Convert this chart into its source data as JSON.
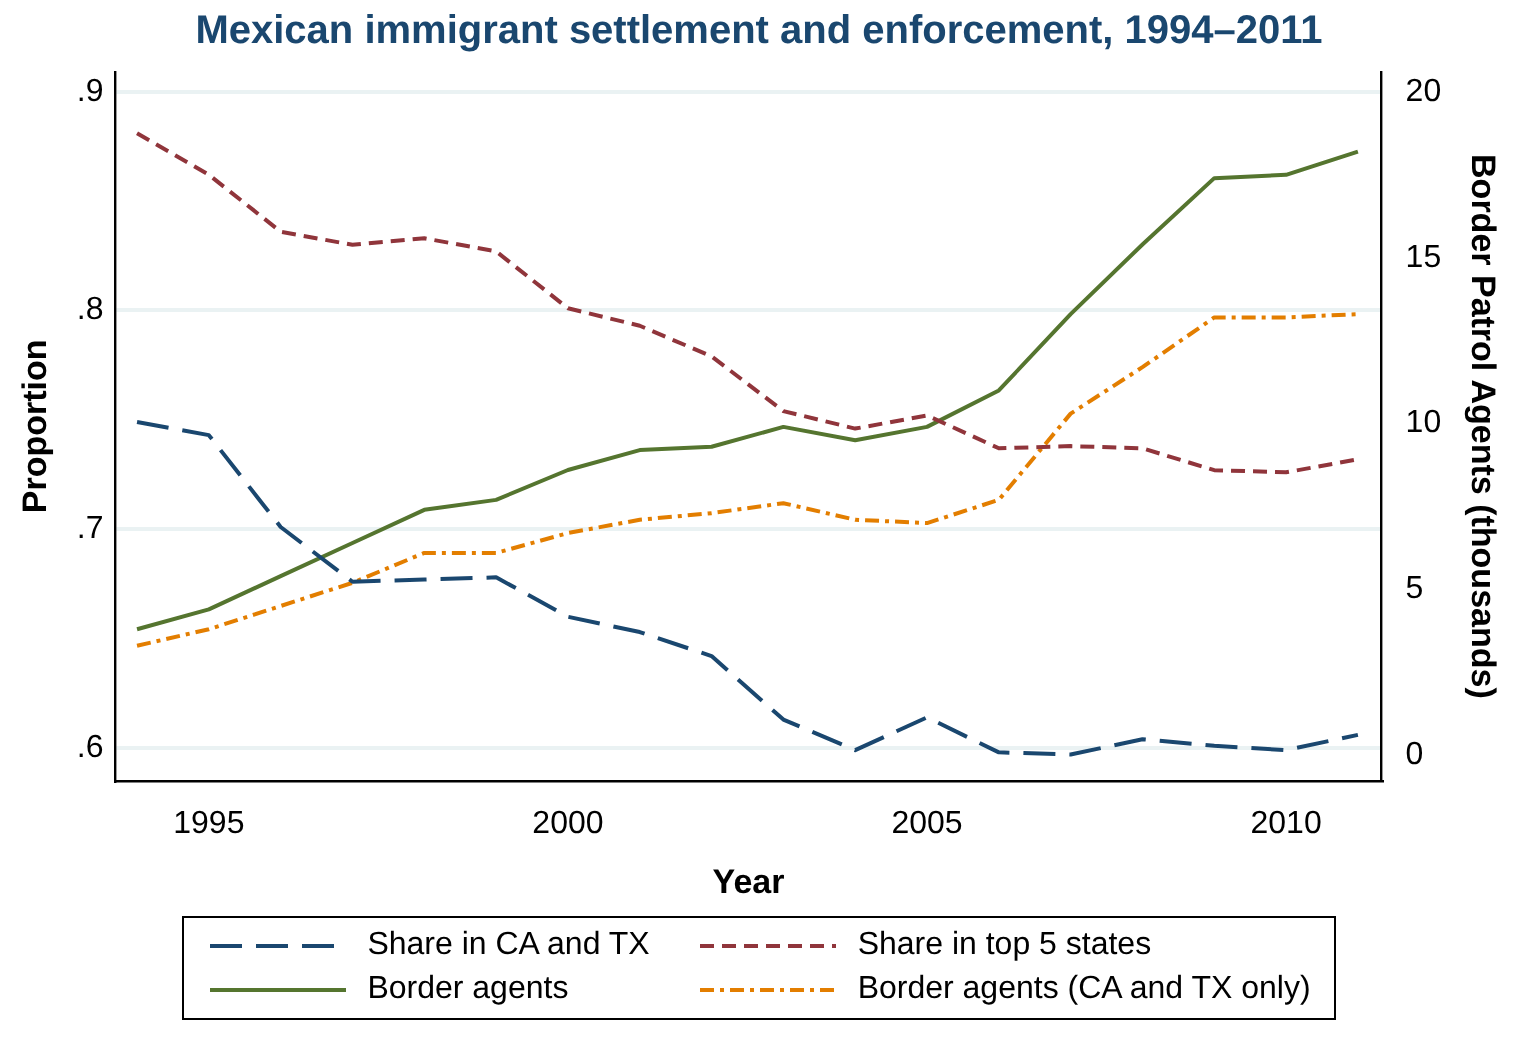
{
  "chart_data": {
    "type": "line",
    "title": "Mexican immigrant settlement and enforcement, 1994–2011",
    "xlabel": "Year",
    "ylabel": "Proportion",
    "y2label": "Border Patrol Agents (thousands)",
    "x": [
      1994,
      1995,
      1996,
      1997,
      1998,
      1999,
      2000,
      2001,
      2002,
      2003,
      2004,
      2005,
      2006,
      2007,
      2008,
      2009,
      2010,
      2011
    ],
    "series": [
      {
        "name": "Share in CA and TX",
        "color": "#1a476f",
        "line_style": "dashed",
        "values": [
          0.749,
          0.743,
          0.701,
          0.676,
          0.677,
          0.678,
          0.66,
          0.653,
          0.642,
          0.613,
          0.599,
          0.614,
          0.598,
          0.597,
          0.604,
          0.601,
          0.599,
          0.606
        ]
      },
      {
        "name": "Share in top 5 states",
        "color": "#90353b",
        "line_style": "dashed",
        "values": [
          0.881,
          0.862,
          0.836,
          0.83,
          0.833,
          0.827,
          0.801,
          0.793,
          0.779,
          0.754,
          0.746,
          0.752,
          0.737,
          0.738,
          0.737,
          0.727,
          0.726,
          0.732
        ]
      },
      {
        "name": "Border agents",
        "color": "#55752f",
        "line_style": "solid",
        "axis": "y2",
        "values": [
          3.8,
          4.4,
          5.4,
          6.4,
          7.4,
          7.7,
          8.6,
          9.2,
          9.3,
          9.9,
          9.5,
          9.9,
          11.0,
          13.3,
          15.4,
          17.4,
          17.5,
          18.2
        ]
      },
      {
        "name": "Border agents (CA and TX only)",
        "color": "#e37e00",
        "line_style": "dashed",
        "axis": "y2",
        "values": [
          3.3,
          3.8,
          4.5,
          5.2,
          6.1,
          6.1,
          6.7,
          7.1,
          7.3,
          7.6,
          7.1,
          7.0,
          7.7,
          10.3,
          11.7,
          13.2,
          13.2,
          13.3
        ]
      }
    ],
    "xlim": [
      1993.7,
      2011.33
    ],
    "xticks": [
      1995,
      2000,
      2005,
      2010
    ],
    "ylim": [
      0.585,
      0.909
    ],
    "yticks": [
      {
        "value": 0.6,
        "label": ".6"
      },
      {
        "value": 0.7,
        "label": ".7"
      },
      {
        "value": 0.8,
        "label": ".8"
      },
      {
        "value": 0.9,
        "label": ".9"
      }
    ],
    "y2lim": [
      -0.77,
      20.6
    ],
    "y2ticks": [
      0,
      5,
      10,
      15,
      20
    ],
    "grid": "y",
    "legend": "bottom"
  }
}
